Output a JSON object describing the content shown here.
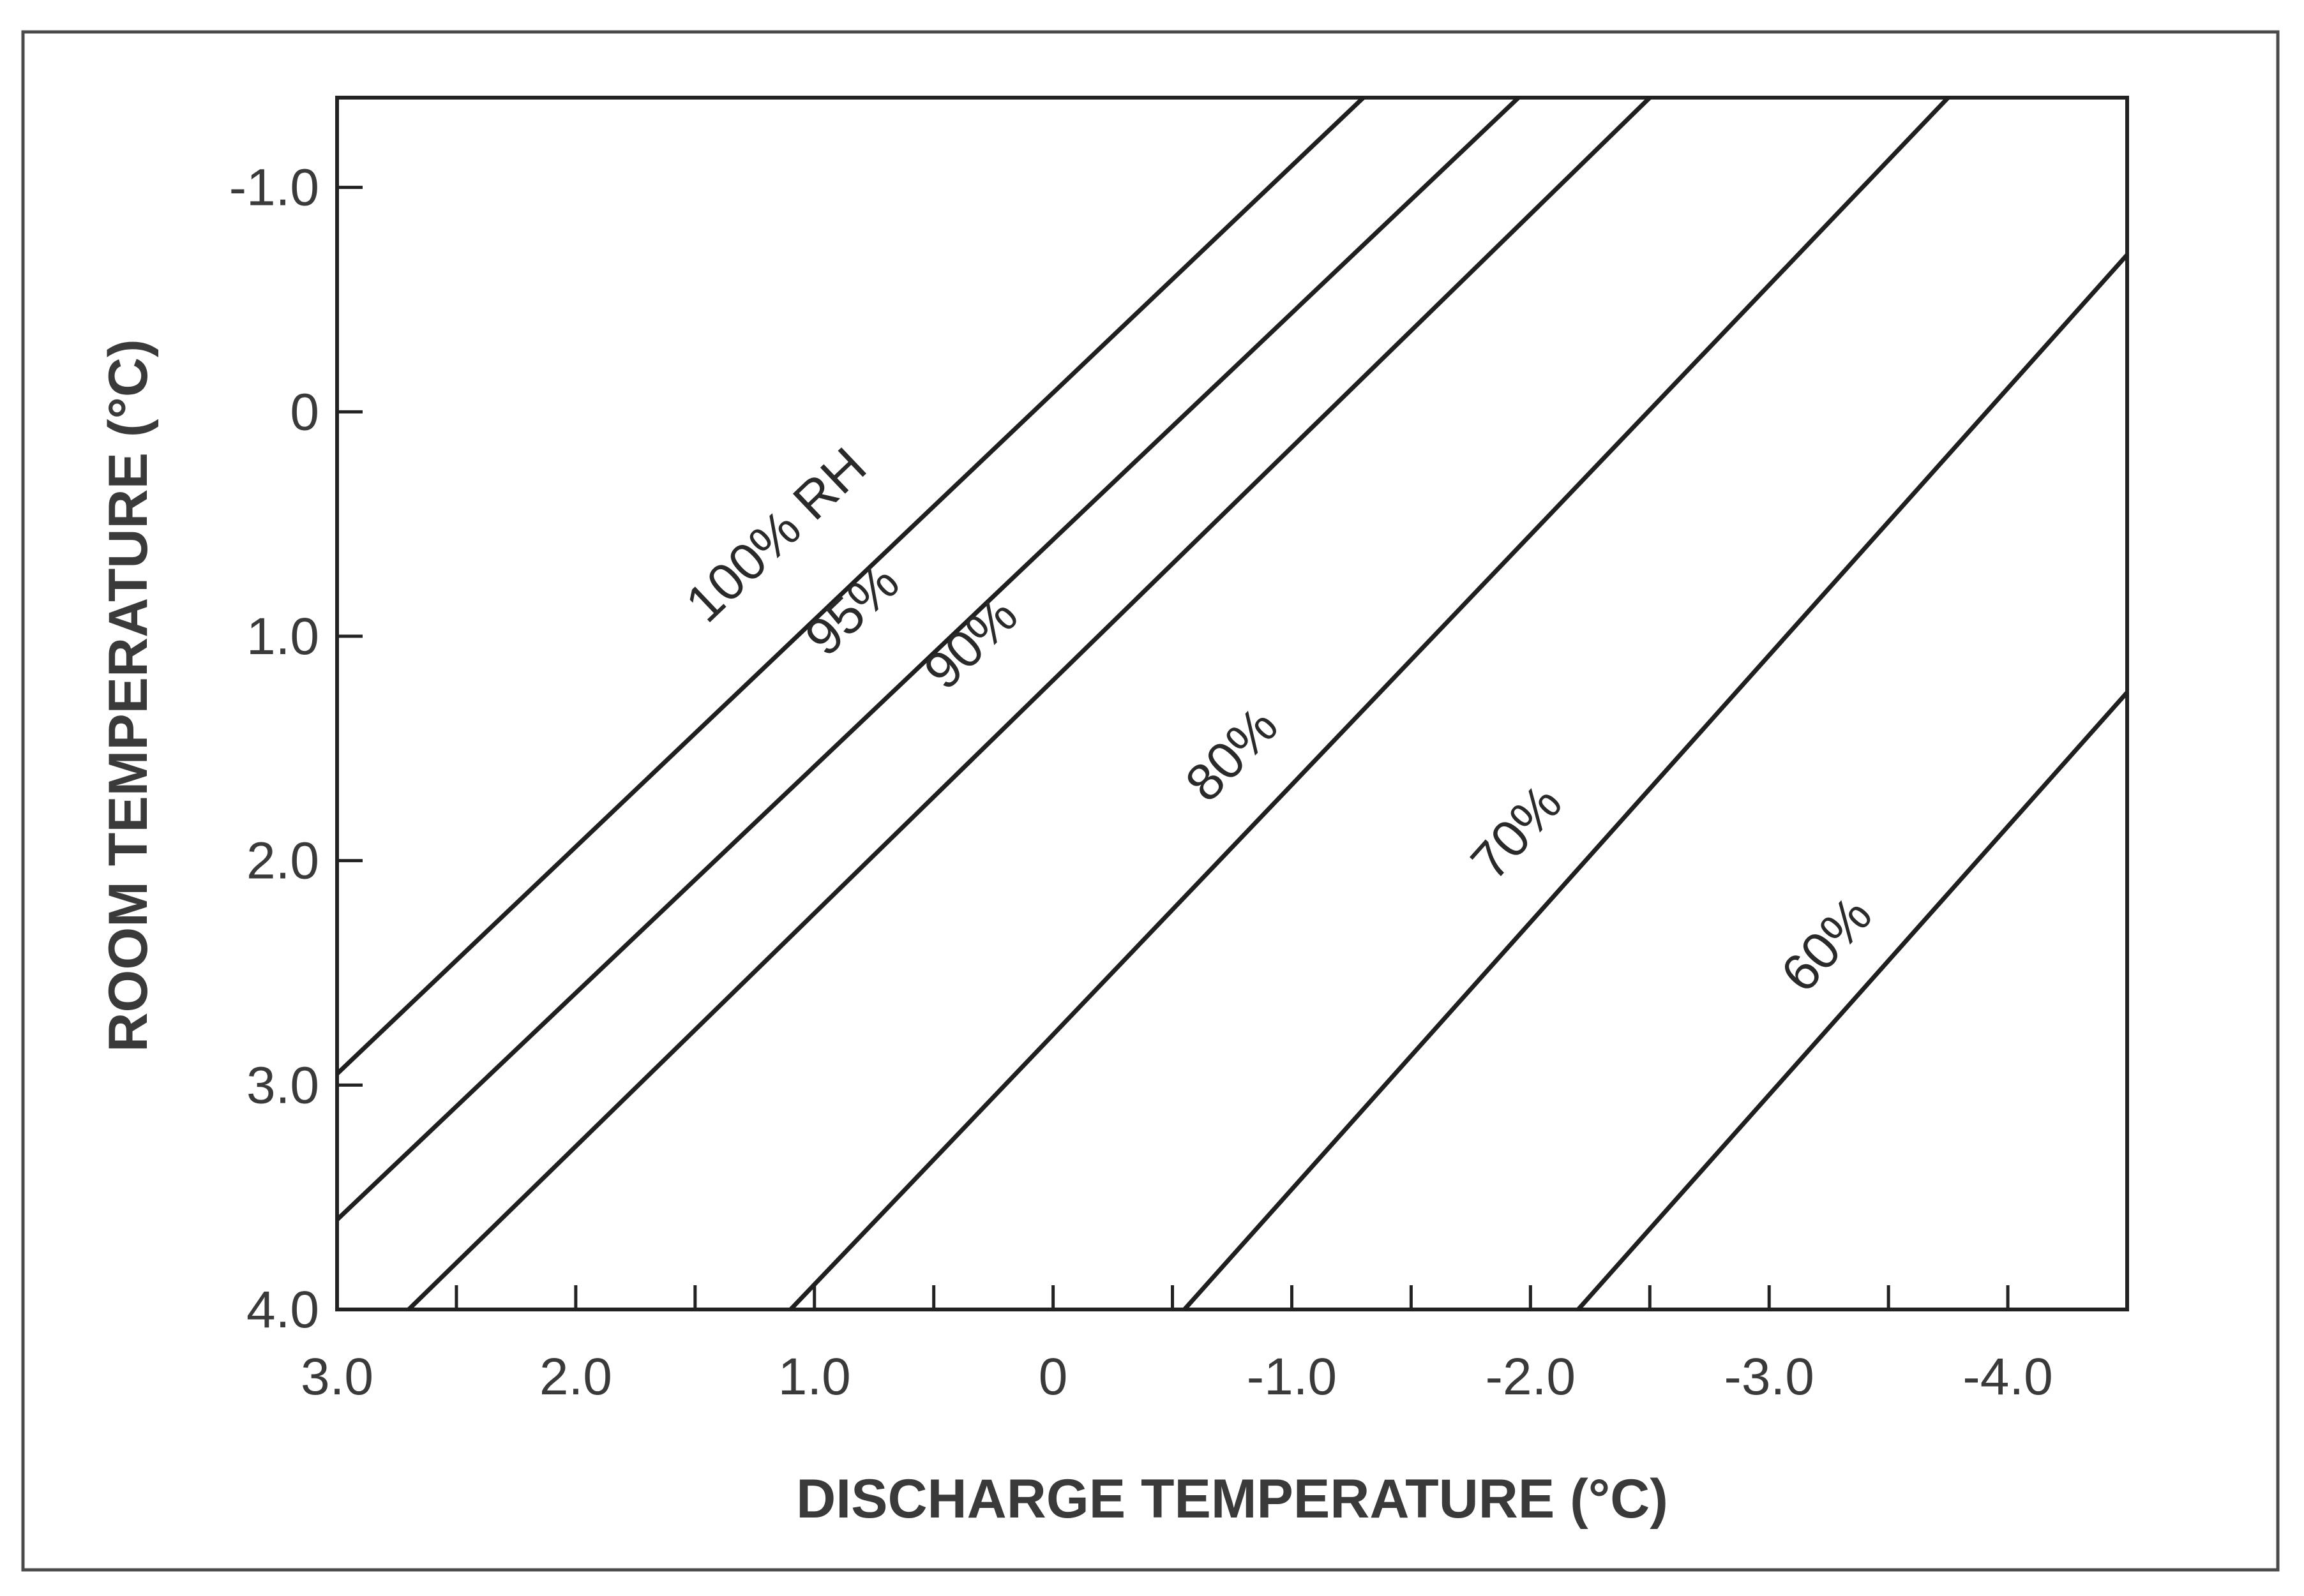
{
  "chart_data": {
    "type": "line",
    "xlabel": "DISCHARGE TEMPERATURE (°C)",
    "ylabel": "ROOM TEMPERATURE (°C)",
    "xlim": [
      3.0,
      -4.5
    ],
    "ylim": [
      -1.4,
      4.0
    ],
    "x_ticks": [
      3.0,
      2.5,
      2.0,
      1.5,
      1.0,
      0.5,
      0,
      -0.5,
      -1.0,
      -1.5,
      -2.0,
      -2.5,
      -3.0,
      -3.5,
      -4.0
    ],
    "x_tick_labels": [
      {
        "value": 3.0,
        "label": "3.0"
      },
      {
        "value": 2.0,
        "label": "2.0"
      },
      {
        "value": 1.0,
        "label": "1.0"
      },
      {
        "value": 0,
        "label": "0"
      },
      {
        "value": -1.0,
        "label": "-1.0"
      },
      {
        "value": -2.0,
        "label": "-2.0"
      },
      {
        "value": -3.0,
        "label": "-3.0"
      },
      {
        "value": -4.0,
        "label": "-4.0"
      }
    ],
    "y_tick_labels": [
      {
        "value": -1.0,
        "label": "-1.0"
      },
      {
        "value": 0,
        "label": "0"
      },
      {
        "value": 1.0,
        "label": "1.0"
      },
      {
        "value": 2.0,
        "label": "2.0"
      },
      {
        "value": 3.0,
        "label": "3.0"
      },
      {
        "value": 4.0,
        "label": "4.0"
      }
    ],
    "grid": false,
    "series": [
      {
        "name": "100% RH",
        "x": [
          3.0,
          -1.3
        ],
        "y": [
          2.95,
          -1.4
        ]
      },
      {
        "name": "95%",
        "x": [
          3.0,
          -1.95
        ],
        "y": [
          3.6,
          -1.4
        ]
      },
      {
        "name": "90%",
        "x": [
          2.7,
          -2.5
        ],
        "y": [
          4.0,
          -1.4
        ]
      },
      {
        "name": "80%",
        "x": [
          1.1,
          -3.75
        ],
        "y": [
          4.0,
          -1.4
        ]
      },
      {
        "name": "70%",
        "x": [
          -0.55,
          -4.5
        ],
        "y": [
          4.0,
          -0.7
        ]
      },
      {
        "name": "60%",
        "x": [
          -2.2,
          -4.5
        ],
        "y": [
          4.0,
          1.25
        ]
      }
    ],
    "label_positions": [
      {
        "x": 1.45,
        "y": 0.95
      },
      {
        "x": 0.95,
        "y": 1.1
      },
      {
        "x": 0.45,
        "y": 1.25
      },
      {
        "x": -0.65,
        "y": 1.75
      },
      {
        "x": -1.85,
        "y": 2.1
      },
      {
        "x": -3.15,
        "y": 2.6
      }
    ]
  }
}
